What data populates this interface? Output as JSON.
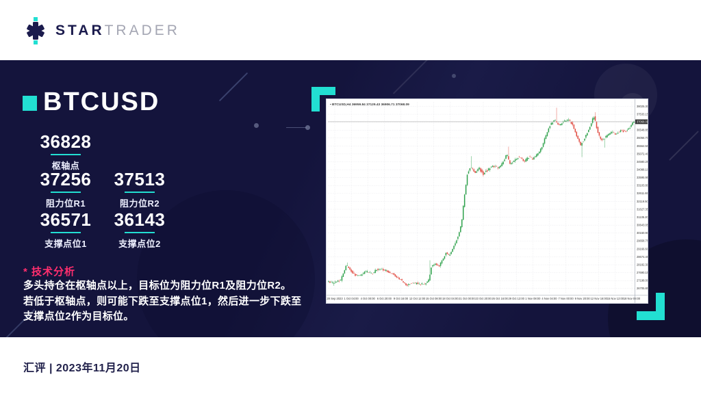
{
  "brand": {
    "star_label": "STAR",
    "trader_label": "TRADER"
  },
  "colors": {
    "accent_teal": "#22DFD2",
    "accent_pink": "#FF2E6E",
    "navy_bg": "#14143C",
    "logo_navy": "#1B1B4D",
    "logo_gray": "#A4A6B3"
  },
  "hero": {
    "symbol": "BTCUSD",
    "pivot": {
      "value": "36828",
      "label": "枢轴点"
    },
    "levels": [
      {
        "value": "37256",
        "label": "阻力位R1"
      },
      {
        "value": "37513",
        "label": "阻力位R2"
      },
      {
        "value": "36571",
        "label": "支撑点位1"
      },
      {
        "value": "36143",
        "label": "支撑点位2"
      }
    ],
    "analysis_title": "* 技术分析",
    "analysis_lines": [
      "多头持仓在枢轴点以上，目标位为阻力位R1及阻力位R2。",
      "若低于枢轴点，则可能下跌至支撑点位1，然后进一步下跌至",
      "支撑点位2作为目标位。"
    ]
  },
  "footer": {
    "caption": "汇评 | 2023年11月20日"
  },
  "chart_data": {
    "type": "candlestick",
    "title": "BTCUSD,H4 36959.84 37129.43 36906.71 37068.09",
    "symbol": "BTCUSD",
    "timeframe": "H4",
    "current_price": 37068.09,
    "current_price_label": "37068.09",
    "ylim": [
      26400,
      38300
    ],
    "grid": true,
    "price_ticks": [
      38025.3,
      37533.15,
      37041.0,
      36548.85,
      36056.7,
      35564.55,
      35072.4,
      34580.25,
      34088.1,
      33595.95,
      33103.8,
      32611.65,
      32119.5,
      31627.35,
      31135.2,
      30643.05,
      30150.9,
      29658.75,
      29166.6,
      28674.45,
      28182.3,
      27690.15,
      27198.0,
      26705.85
    ],
    "time_ticks": [
      "28 Sep 2023",
      "1 Oct 04:00",
      "4 Oct 00:00",
      "6 Oct 20:00",
      "9 Oct 16:00",
      "12 Oct 12:00",
      "15 Oct 08:00",
      "18 Oct 04:00",
      "21 Oct 00:00",
      "23 Oct 20:00",
      "26 Oct 16:00",
      "29 Oct 12:00",
      "1 Nov 08:00",
      "4 Nov 04:00",
      "7 Nov 00:00",
      "9 Nov 20:00",
      "12 Nov 16:00",
      "15 Nov 12:00",
      "18 Nov 08:00"
    ],
    "candles_n": 230,
    "path": [
      [
        0.0,
        27150
      ],
      [
        0.02,
        27020
      ],
      [
        0.045,
        27280
      ],
      [
        0.062,
        28120
      ],
      [
        0.072,
        27980
      ],
      [
        0.085,
        27580
      ],
      [
        0.105,
        27480
      ],
      [
        0.125,
        27760
      ],
      [
        0.145,
        27620
      ],
      [
        0.165,
        27920
      ],
      [
        0.19,
        27840
      ],
      [
        0.215,
        27580
      ],
      [
        0.235,
        27320
      ],
      [
        0.258,
        26920
      ],
      [
        0.28,
        27060
      ],
      [
        0.305,
        26960
      ],
      [
        0.322,
        27040
      ],
      [
        0.332,
        27260
      ],
      [
        0.34,
        28120
      ],
      [
        0.352,
        28260
      ],
      [
        0.365,
        28060
      ],
      [
        0.375,
        28480
      ],
      [
        0.388,
        28980
      ],
      [
        0.398,
        28720
      ],
      [
        0.412,
        29280
      ],
      [
        0.425,
        29880
      ],
      [
        0.437,
        30660
      ],
      [
        0.447,
        32400
      ],
      [
        0.457,
        33880
      ],
      [
        0.468,
        34260
      ],
      [
        0.482,
        33880
      ],
      [
        0.495,
        34180
      ],
      [
        0.508,
        33820
      ],
      [
        0.525,
        34120
      ],
      [
        0.54,
        34320
      ],
      [
        0.555,
        34180
      ],
      [
        0.572,
        34480
      ],
      [
        0.585,
        35080
      ],
      [
        0.596,
        34420
      ],
      [
        0.612,
        34720
      ],
      [
        0.628,
        34920
      ],
      [
        0.642,
        34580
      ],
      [
        0.658,
        34900
      ],
      [
        0.67,
        34760
      ],
      [
        0.684,
        35020
      ],
      [
        0.698,
        35420
      ],
      [
        0.714,
        36260
      ],
      [
        0.728,
        36920
      ],
      [
        0.742,
        37160
      ],
      [
        0.756,
        36820
      ],
      [
        0.772,
        37080
      ],
      [
        0.786,
        37220
      ],
      [
        0.8,
        36880
      ],
      [
        0.814,
        36150
      ],
      [
        0.826,
        35620
      ],
      [
        0.84,
        36050
      ],
      [
        0.856,
        36720
      ],
      [
        0.869,
        37430
      ],
      [
        0.884,
        36280
      ],
      [
        0.897,
        35880
      ],
      [
        0.912,
        36220
      ],
      [
        0.926,
        36440
      ],
      [
        0.94,
        36290
      ],
      [
        0.956,
        36520
      ],
      [
        0.972,
        36430
      ],
      [
        0.986,
        36740
      ],
      [
        1.0,
        37068
      ]
    ],
    "spikes": [
      {
        "t": 0.063,
        "high": 28320
      },
      {
        "t": 0.259,
        "low": 26820
      },
      {
        "t": 0.329,
        "high": 28460
      },
      {
        "t": 0.464,
        "high": 34930
      },
      {
        "t": 0.586,
        "high": 35520
      },
      {
        "t": 0.744,
        "high": 37940
      },
      {
        "t": 0.827,
        "low": 34870
      },
      {
        "t": 0.87,
        "high": 37660
      },
      {
        "t": 0.898,
        "low": 35460
      }
    ],
    "colors": {
      "up": "#2CA04A",
      "down": "#E14B41",
      "grid": "#dfdfe4",
      "axis_text": "#333333",
      "bid_line": "#a9a9a9",
      "bid_box": "#333333",
      "chart_bg": "#ffffff"
    }
  }
}
